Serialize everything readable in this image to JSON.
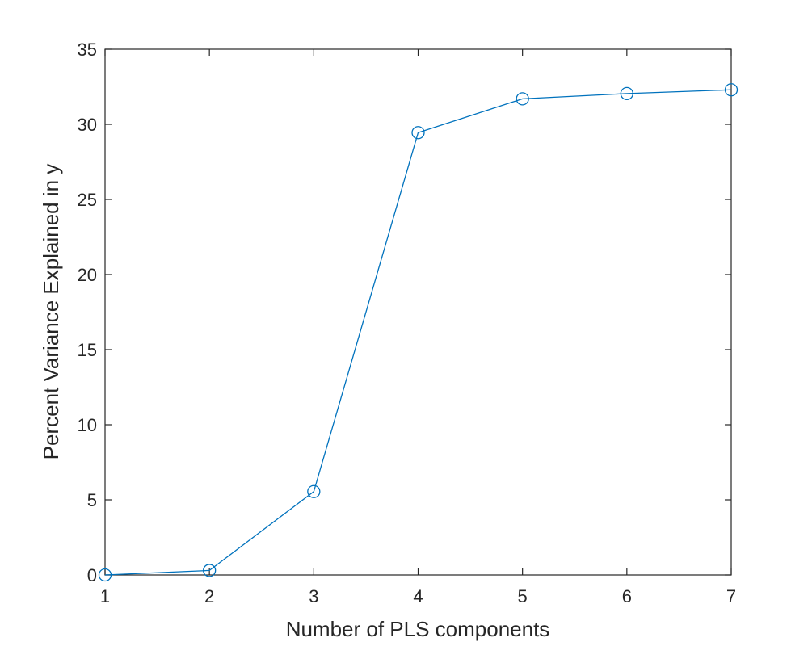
{
  "chart_data": {
    "type": "line",
    "title": "",
    "xlabel": "Number of PLS components",
    "ylabel": "Percent Variance Explained in y",
    "xlim": [
      1,
      7
    ],
    "ylim": [
      0,
      35
    ],
    "xticks": [
      1,
      2,
      3,
      4,
      5,
      6,
      7
    ],
    "yticks": [
      0,
      5,
      10,
      15,
      20,
      25,
      30,
      35
    ],
    "grid": false,
    "box": true,
    "series": [
      {
        "marker": "circle",
        "color": "#0072BD",
        "x": [
          1,
          2,
          3,
          4,
          5,
          6,
          7
        ],
        "y": [
          0.0,
          0.3,
          5.55,
          29.45,
          31.7,
          32.05,
          32.3
        ]
      }
    ]
  }
}
